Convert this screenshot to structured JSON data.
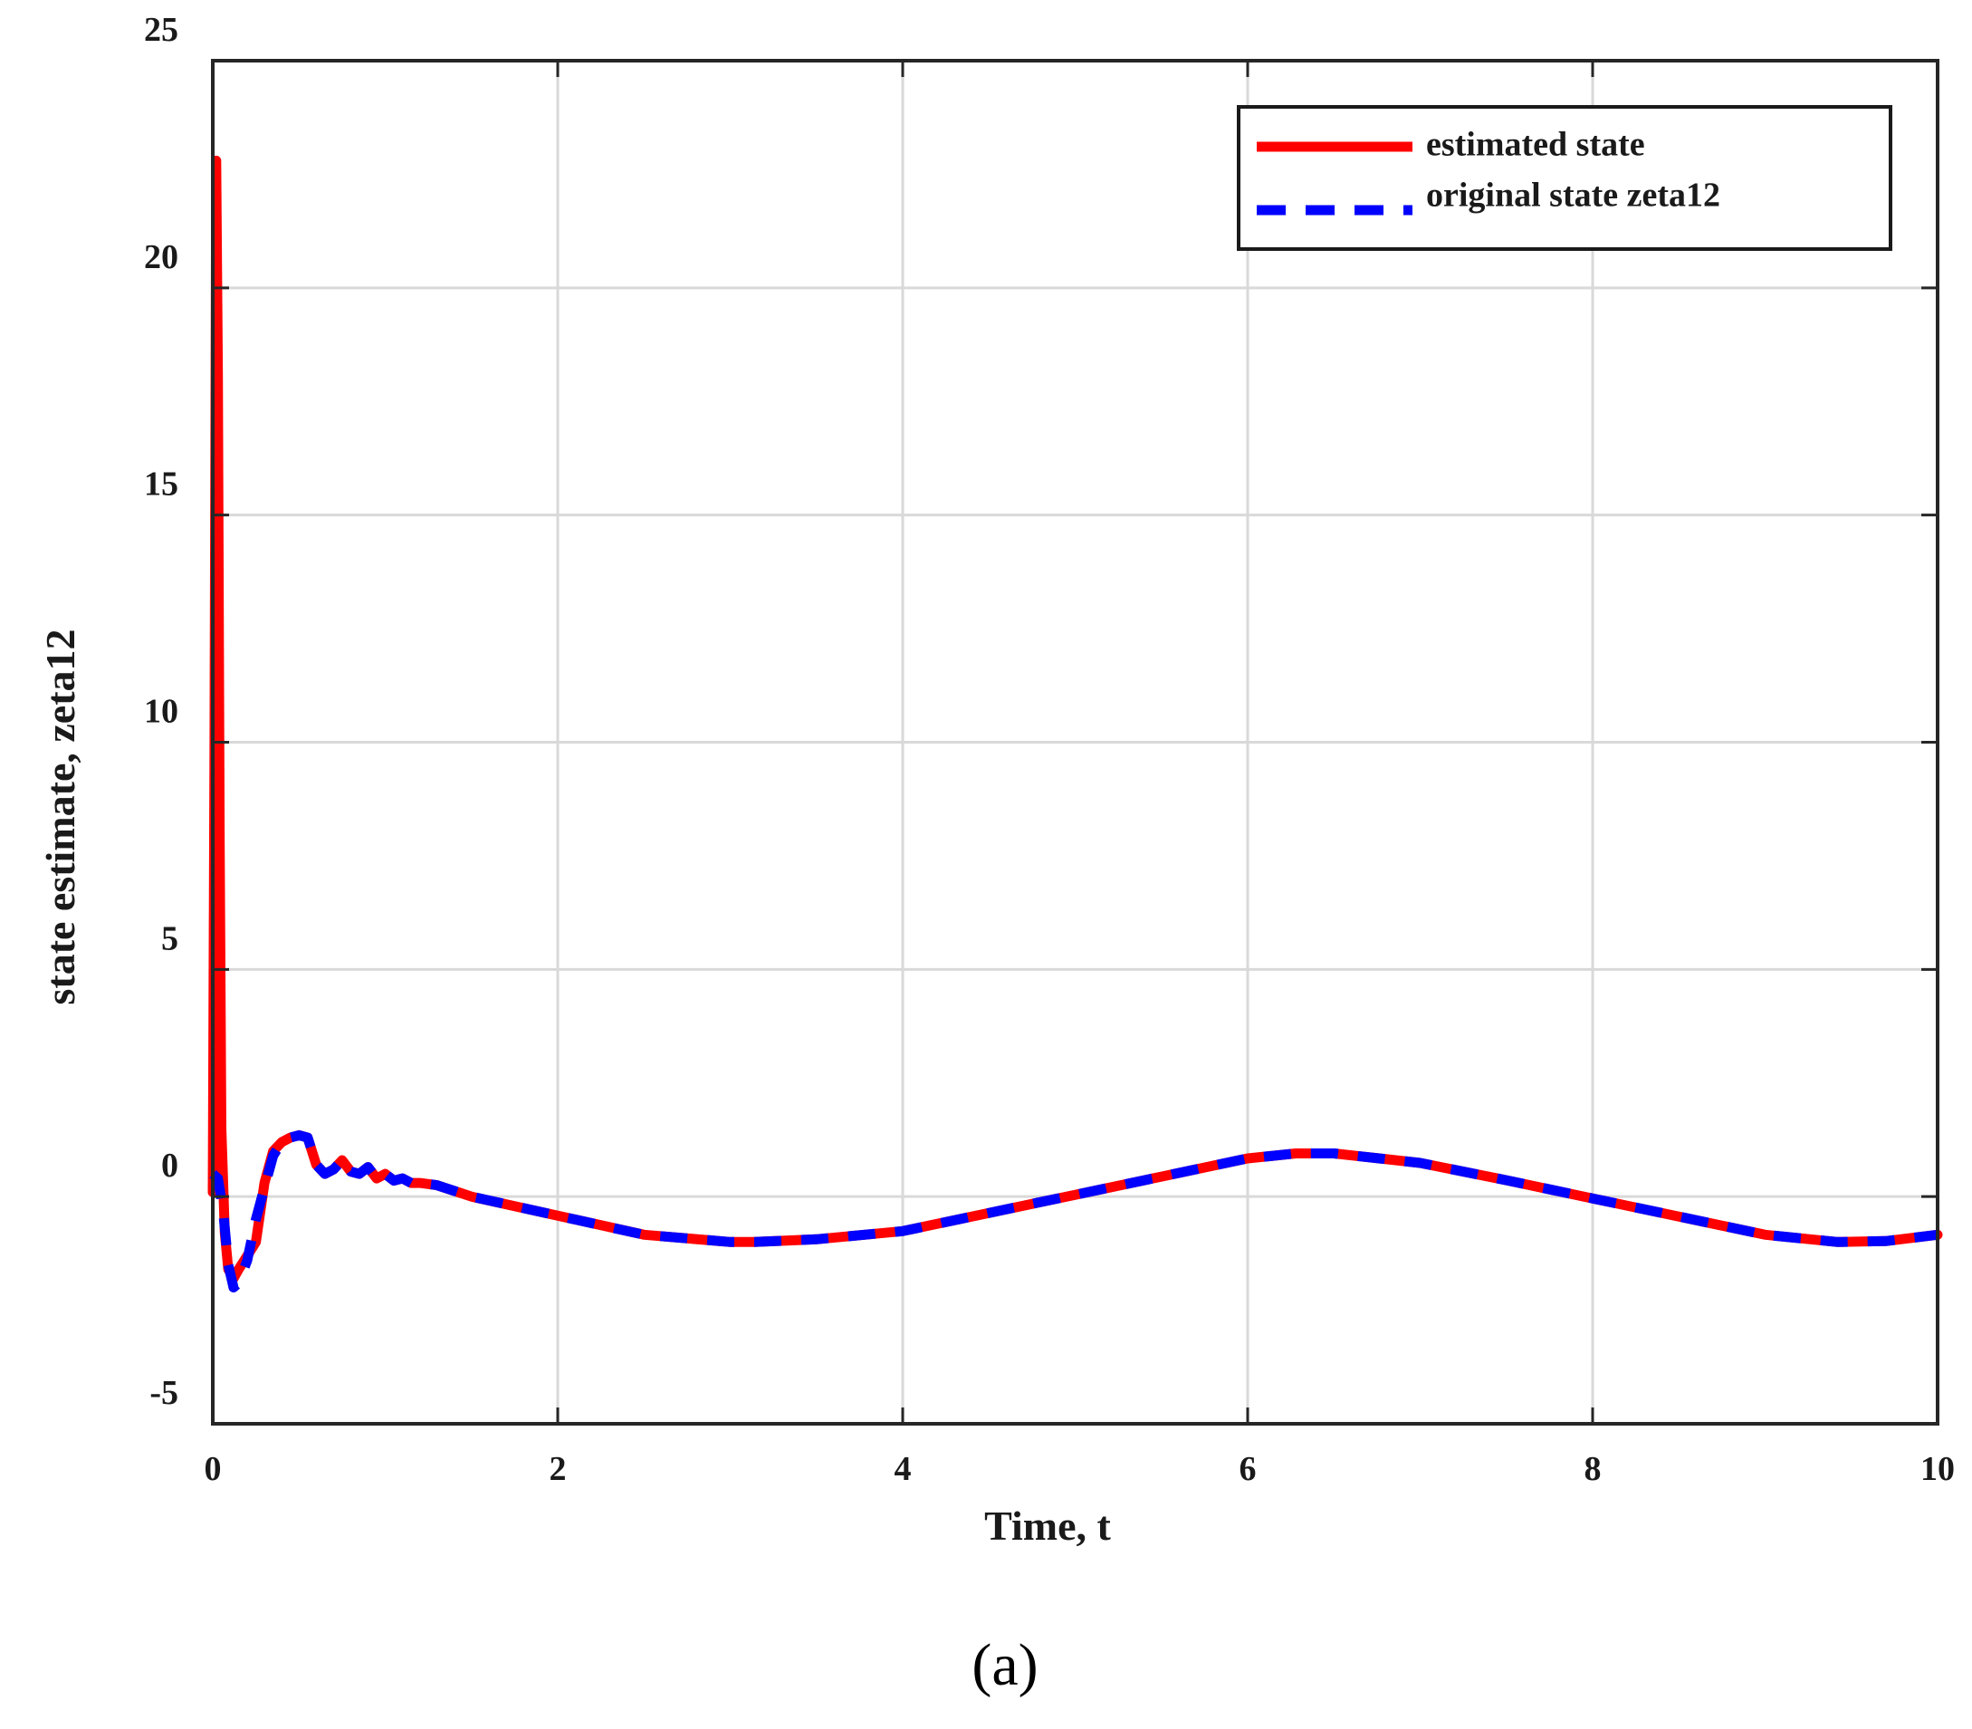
{
  "chart_data": {
    "type": "line",
    "xlabel": "Time, t",
    "ylabel": "state estimate, zeta12",
    "caption": "(a)",
    "xlim": [
      0,
      10
    ],
    "ylim": [
      -5,
      25
    ],
    "xticks": [
      0,
      2,
      4,
      6,
      8,
      10
    ],
    "yticks": [
      -5,
      0,
      5,
      10,
      15,
      20,
      25
    ],
    "xtick_labels": [
      "0",
      "2",
      "4",
      "6",
      "8",
      "10"
    ],
    "ytick_labels": [
      "-5",
      "0",
      "5",
      "10",
      "15",
      "20",
      "25"
    ],
    "grid": true,
    "legend_position": "top-right",
    "colors": {
      "estimated": "#ff0000",
      "original": "#0000ff",
      "grid": "#d9d9d9",
      "axis": "#262626"
    },
    "series": [
      {
        "name": "estimated state",
        "style": "solid",
        "x": [
          0,
          0.01,
          0.02,
          0.03,
          0.04,
          0.05,
          0.07,
          0.09,
          0.12,
          0.15,
          0.2,
          0.25,
          0.3,
          0.35,
          0.4,
          0.45,
          0.5,
          0.55,
          0.6,
          0.65,
          0.7,
          0.75,
          0.8,
          0.85,
          0.9,
          0.95,
          1.0,
          1.05,
          1.1,
          1.15,
          1.2,
          1.3,
          1.5,
          2.0,
          2.5,
          3.0,
          3.14,
          3.5,
          4.0,
          4.5,
          5.0,
          5.5,
          6.0,
          6.28,
          6.5,
          7.0,
          7.5,
          8.0,
          8.5,
          9.0,
          9.42,
          9.7,
          10.0
        ],
        "y": [
          0.1,
          10.0,
          22.8,
          18.0,
          8.0,
          1.5,
          -0.8,
          -1.6,
          -1.8,
          -1.6,
          -1.3,
          -1.0,
          0.3,
          1.0,
          1.2,
          1.3,
          1.35,
          1.3,
          0.7,
          0.5,
          0.6,
          0.8,
          0.55,
          0.5,
          0.65,
          0.4,
          0.5,
          0.35,
          0.4,
          0.3,
          0.3,
          0.25,
          0.0,
          -0.42,
          -0.84,
          -1.0,
          -1.0,
          -0.94,
          -0.76,
          -0.36,
          0.04,
          0.44,
          0.84,
          0.95,
          0.95,
          0.74,
          0.36,
          -0.04,
          -0.44,
          -0.84,
          -1.0,
          -0.98,
          -0.84
        ]
      },
      {
        "name": "original state zeta12",
        "style": "dashed",
        "x": [
          0,
          0.03,
          0.06,
          0.09,
          0.12,
          0.15,
          0.2,
          0.25,
          0.3,
          0.35,
          0.4,
          0.45,
          0.5,
          0.55,
          0.6,
          0.65,
          0.7,
          0.75,
          0.8,
          0.85,
          0.9,
          0.95,
          1.0,
          1.05,
          1.1,
          1.15,
          1.2,
          1.3,
          1.5,
          2.0,
          2.5,
          3.0,
          3.14,
          3.5,
          4.0,
          4.5,
          5.0,
          5.5,
          6.0,
          6.28,
          6.5,
          7.0,
          7.5,
          8.0,
          8.5,
          9.0,
          9.42,
          9.7,
          10.0
        ],
        "y": [
          0.5,
          0.4,
          -0.3,
          -1.5,
          -2.0,
          -1.9,
          -1.4,
          -0.5,
          0.2,
          0.9,
          1.2,
          1.3,
          1.35,
          1.3,
          0.7,
          0.5,
          0.6,
          0.8,
          0.55,
          0.5,
          0.65,
          0.4,
          0.5,
          0.35,
          0.4,
          0.3,
          0.3,
          0.25,
          0.0,
          -0.42,
          -0.84,
          -1.0,
          -1.0,
          -0.94,
          -0.76,
          -0.36,
          0.04,
          0.44,
          0.84,
          0.95,
          0.95,
          0.74,
          0.36,
          -0.04,
          -0.44,
          -0.84,
          -1.0,
          -0.98,
          -0.84
        ]
      }
    ]
  }
}
